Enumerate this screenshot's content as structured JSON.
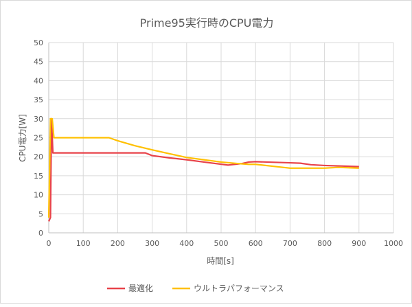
{
  "chart_data": {
    "type": "line",
    "title": "Prime95実行時のCPU電力",
    "xlabel": "時間[s]",
    "ylabel": "CPU電力[W]",
    "xlim": [
      0,
      1000
    ],
    "ylim": [
      0,
      50
    ],
    "xticks": [
      0,
      100,
      200,
      300,
      400,
      500,
      600,
      700,
      800,
      900,
      1000
    ],
    "yticks": [
      0,
      5,
      10,
      15,
      20,
      25,
      30,
      35,
      40,
      45,
      50
    ],
    "grid": true,
    "legend": "bottom",
    "series": [
      {
        "name": "最適化",
        "color": "#e8434a",
        "points": [
          [
            0,
            3
          ],
          [
            5,
            4
          ],
          [
            8,
            30
          ],
          [
            12,
            21
          ],
          [
            30,
            21
          ],
          [
            280,
            21
          ],
          [
            300,
            20.3
          ],
          [
            350,
            19.7
          ],
          [
            400,
            19.2
          ],
          [
            450,
            18.6
          ],
          [
            520,
            17.8
          ],
          [
            560,
            18.2
          ],
          [
            580,
            18.6
          ],
          [
            600,
            18.7
          ],
          [
            700,
            18.4
          ],
          [
            730,
            18.3
          ],
          [
            760,
            17.9
          ],
          [
            800,
            17.7
          ],
          [
            900,
            17.4
          ]
        ]
      },
      {
        "name": "ウルトラパフォーマンス",
        "color": "#ffc000",
        "points": [
          [
            0,
            4
          ],
          [
            5,
            30
          ],
          [
            10,
            30
          ],
          [
            15,
            25
          ],
          [
            175,
            25
          ],
          [
            200,
            24.2
          ],
          [
            250,
            22.9
          ],
          [
            300,
            21.8
          ],
          [
            350,
            20.8
          ],
          [
            400,
            19.8
          ],
          [
            450,
            19.2
          ],
          [
            500,
            18.6
          ],
          [
            550,
            18.2
          ],
          [
            580,
            18
          ],
          [
            600,
            18
          ],
          [
            650,
            17.5
          ],
          [
            700,
            17
          ],
          [
            800,
            17
          ],
          [
            840,
            17.2
          ],
          [
            900,
            17
          ]
        ]
      }
    ]
  }
}
